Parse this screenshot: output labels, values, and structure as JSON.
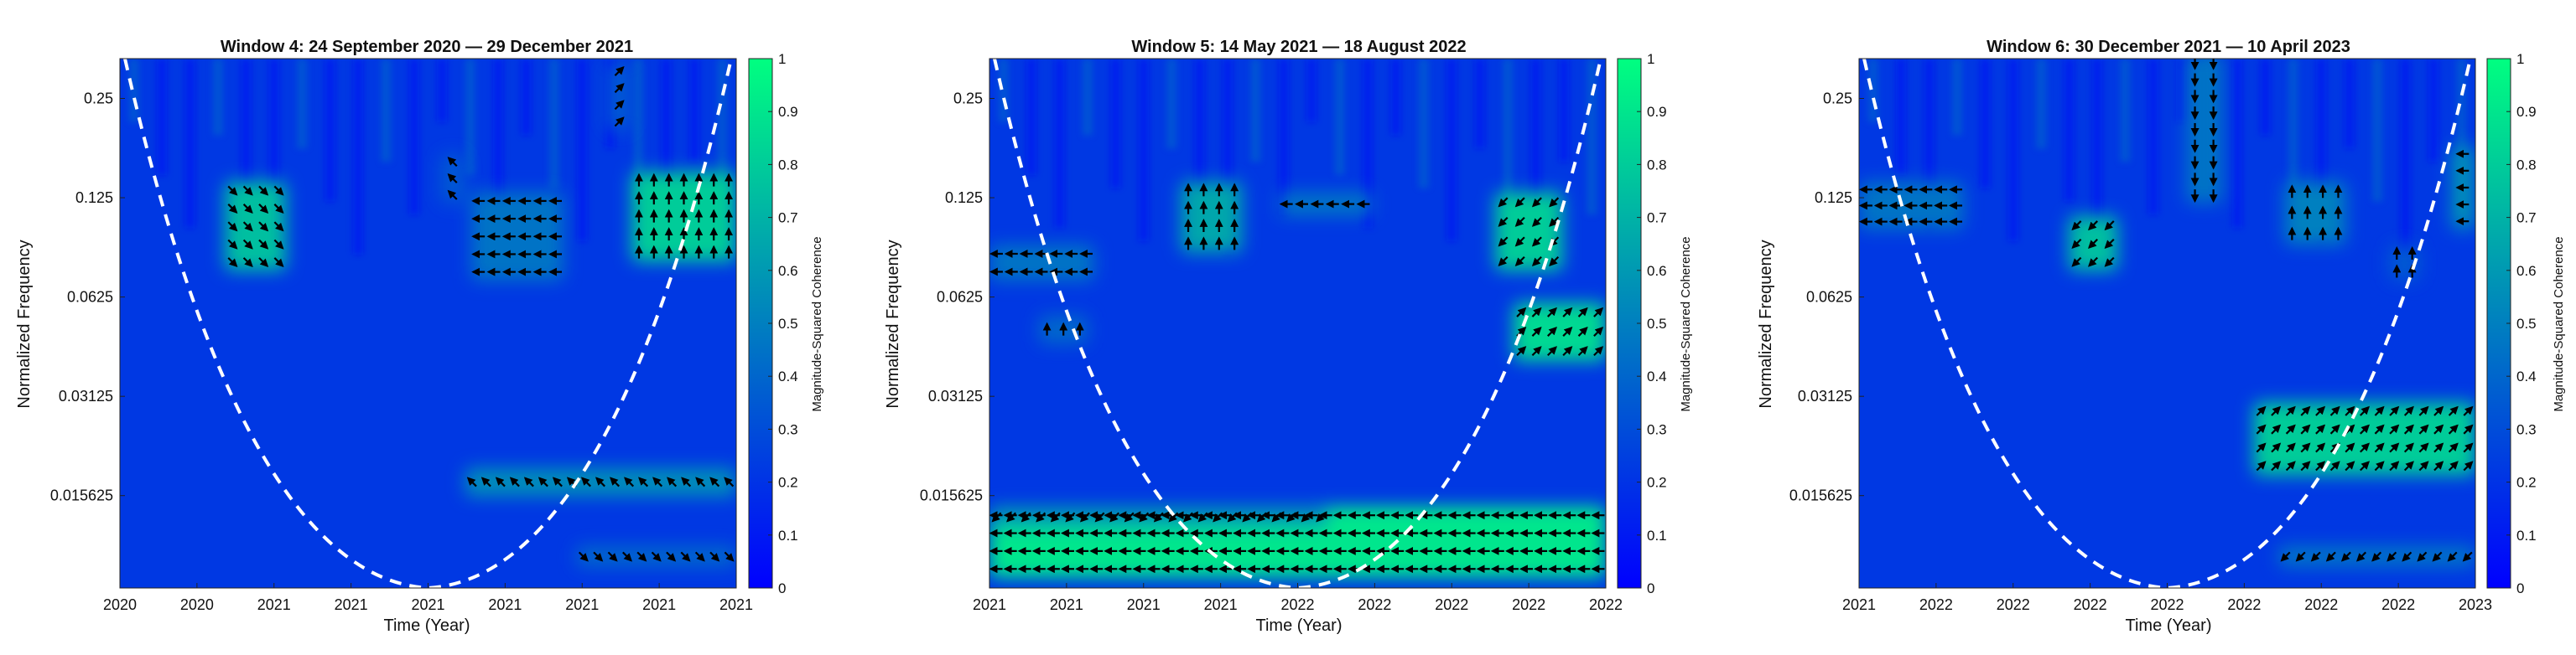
{
  "figure": {
    "colorbar_label": "Magnitude-Squared Coherence"
  },
  "colormap": {
    "low": "#0000ff",
    "high": "#00ff80"
  },
  "chart_data": [
    {
      "type": "heatmap",
      "title": "Window 4: 24 September 2020 — 29 December 2021",
      "xlabel": "Time (Year)",
      "ylabel": "Normalized Frequency",
      "x_tick_labels": [
        "2020",
        "2020",
        "2021",
        "2021",
        "2021",
        "2021",
        "2021",
        "2021",
        "2021"
      ],
      "y_tick_labels": [
        "0.25",
        "0.125",
        "0.0625",
        "0.03125",
        "0.015625"
      ],
      "y_scale": "log2",
      "colorbar_ticks": [
        "0",
        "0.1",
        "0.2",
        "0.3",
        "0.4",
        "0.5",
        "0.6",
        "0.7",
        "0.8",
        "0.9",
        "1"
      ],
      "colorbar_range": [
        0,
        1
      ],
      "high_coherence_regions": [
        {
          "x": [
            0.17,
            0.27
          ],
          "y": [
            0.075,
            0.14
          ],
          "value": 0.75,
          "arrow_dir": "down-right"
        },
        {
          "x": [
            0.83,
            1.0
          ],
          "y": [
            0.08,
            0.15
          ],
          "value": 0.8,
          "arrow_dir": "up"
        },
        {
          "x": [
            0.57,
            0.72
          ],
          "y": [
            0.07,
            0.13
          ],
          "value": 0.45,
          "arrow_dir": "left"
        },
        {
          "x": [
            0.56,
            1.0
          ],
          "y": [
            0.0155,
            0.019
          ],
          "value": 0.55,
          "arrow_dir": "up-left"
        },
        {
          "x": [
            0.74,
            1.0
          ],
          "y": [
            0.0095,
            0.011
          ],
          "value": 0.4,
          "arrow_dir": "down-right"
        },
        {
          "x": [
            0.52,
            0.56
          ],
          "y": [
            0.12,
            0.17
          ],
          "value": 0.35,
          "arrow_dir": "up-left"
        },
        {
          "x": [
            0.79,
            0.83
          ],
          "y": [
            0.2,
            0.32
          ],
          "value": 0.35,
          "arrow_dir": "up-right"
        }
      ]
    },
    {
      "type": "heatmap",
      "title": "Window 5: 14 May 2021 — 18 August 2022",
      "xlabel": "Time (Year)",
      "ylabel": "Normalized Frequency",
      "x_tick_labels": [
        "2021",
        "2021",
        "2021",
        "2021",
        "2022",
        "2022",
        "2022",
        "2022",
        "2022"
      ],
      "y_tick_labels": [
        "0.25",
        "0.125",
        "0.0625",
        "0.03125",
        "0.015625"
      ],
      "y_scale": "log2",
      "colorbar_ticks": [
        "0",
        "0.1",
        "0.2",
        "0.3",
        "0.4",
        "0.5",
        "0.6",
        "0.7",
        "0.8",
        "0.9",
        "1"
      ],
      "colorbar_range": [
        0,
        1
      ],
      "high_coherence_regions": [
        {
          "x": [
            0.0,
            1.0
          ],
          "y": [
            0.0088,
            0.0145
          ],
          "value": 0.9,
          "arrow_dir": "left"
        },
        {
          "x": [
            0.0,
            0.55
          ],
          "y": [
            0.0125,
            0.0145
          ],
          "value": 0.6,
          "arrow_dir": "down-left"
        },
        {
          "x": [
            0.85,
            1.0
          ],
          "y": [
            0.04,
            0.06
          ],
          "value": 0.85,
          "arrow_dir": "up-right"
        },
        {
          "x": [
            0.82,
            0.93
          ],
          "y": [
            0.075,
            0.13
          ],
          "value": 0.8,
          "arrow_dir": "down-left"
        },
        {
          "x": [
            0.31,
            0.41
          ],
          "y": [
            0.085,
            0.14
          ],
          "value": 0.65,
          "arrow_dir": "up"
        },
        {
          "x": [
            0.0,
            0.17
          ],
          "y": [
            0.07,
            0.09
          ],
          "value": 0.45,
          "arrow_dir": "left"
        },
        {
          "x": [
            0.08,
            0.16
          ],
          "y": [
            0.045,
            0.055
          ],
          "value": 0.4,
          "arrow_dir": "up"
        },
        {
          "x": [
            0.47,
            0.62
          ],
          "y": [
            0.11,
            0.13
          ],
          "value": 0.45,
          "arrow_dir": "left"
        }
      ]
    },
    {
      "type": "heatmap",
      "title": "Window 6: 30 December 2021 — 10 April 2023",
      "xlabel": "Time (Year)",
      "ylabel": "Normalized Frequency",
      "x_tick_labels": [
        "2021",
        "2022",
        "2022",
        "2022",
        "2022",
        "2022",
        "2022",
        "2022",
        "2023"
      ],
      "y_tick_labels": [
        "0.25",
        "0.125",
        "0.0625",
        "0.03125",
        "0.015625"
      ],
      "y_scale": "log2",
      "colorbar_ticks": [
        "0",
        "0.1",
        "0.2",
        "0.3",
        "0.4",
        "0.5",
        "0.6",
        "0.7",
        "0.8",
        "0.9",
        "1"
      ],
      "colorbar_range": [
        0,
        1
      ],
      "high_coherence_regions": [
        {
          "x": [
            0.64,
            1.0
          ],
          "y": [
            0.018,
            0.03
          ],
          "value": 0.8,
          "arrow_dir": "up-right"
        },
        {
          "x": [
            0.34,
            0.42
          ],
          "y": [
            0.075,
            0.11
          ],
          "value": 0.75,
          "arrow_dir": "down-left"
        },
        {
          "x": [
            0.69,
            0.79
          ],
          "y": [
            0.09,
            0.14
          ],
          "value": 0.5,
          "arrow_dir": "up"
        },
        {
          "x": [
            0.0,
            0.17
          ],
          "y": [
            0.1,
            0.14
          ],
          "value": 0.45,
          "arrow_dir": "left"
        },
        {
          "x": [
            0.96,
            1.0
          ],
          "y": [
            0.1,
            0.18
          ],
          "value": 0.55,
          "arrow_dir": "left"
        },
        {
          "x": [
            0.68,
            1.0
          ],
          "y": [
            0.0095,
            0.011
          ],
          "value": 0.45,
          "arrow_dir": "down-left"
        },
        {
          "x": [
            0.86,
            0.91
          ],
          "y": [
            0.07,
            0.09
          ],
          "value": 0.35,
          "arrow_dir": "up"
        },
        {
          "x": [
            0.53,
            0.59
          ],
          "y": [
            0.12,
            0.34
          ],
          "value": 0.45,
          "arrow_dir": "down"
        }
      ]
    }
  ]
}
